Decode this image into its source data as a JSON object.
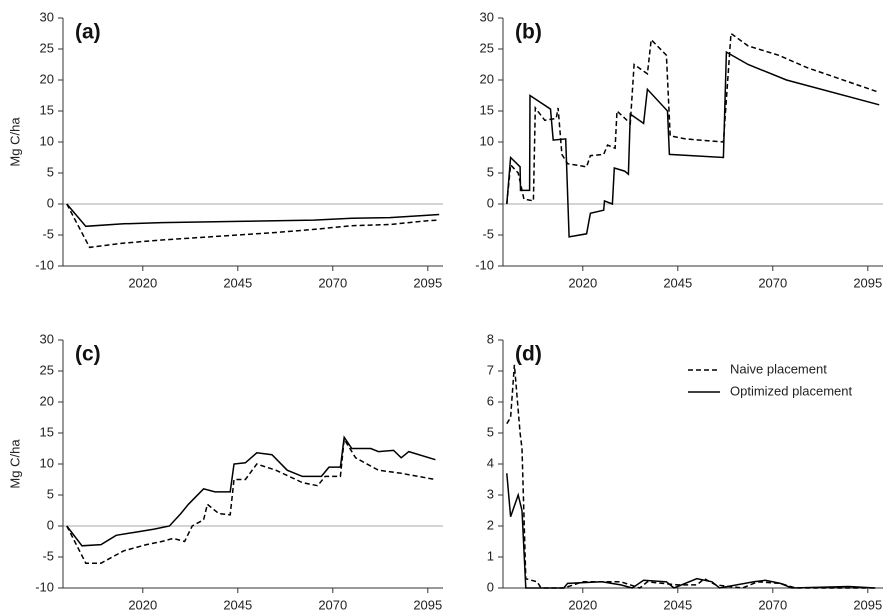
{
  "chart_data": [
    {
      "type": "line",
      "panel_label": "(a)",
      "y_label": "Mg C/ha",
      "xlim": [
        1999,
        2099
      ],
      "ylim": [
        -10,
        30
      ],
      "xticks": [
        2020,
        2045,
        2070,
        2095
      ],
      "yticks": [
        -10,
        -5,
        0,
        5,
        10,
        15,
        20,
        25,
        30
      ],
      "series": [
        {
          "dashed": true,
          "color": "#000",
          "x": [
            2000,
            2006,
            2015,
            2025,
            2035,
            2045,
            2055,
            2065,
            2075,
            2085,
            2095,
            2098
          ],
          "values": [
            0,
            -7,
            -6.3,
            -5.8,
            -5.4,
            -5,
            -4.6,
            -4.1,
            -3.5,
            -3.3,
            -2.7,
            -2.6
          ]
        },
        {
          "dashed": false,
          "color": "#000",
          "x": [
            2000,
            2005,
            2015,
            2025,
            2035,
            2045,
            2055,
            2065,
            2075,
            2085,
            2095,
            2098
          ],
          "values": [
            0,
            -3.6,
            -3.2,
            -3.0,
            -2.9,
            -2.8,
            -2.7,
            -2.6,
            -2.3,
            -2.2,
            -1.8,
            -1.7
          ]
        }
      ]
    },
    {
      "type": "line",
      "panel_label": "(b)",
      "xlim": [
        1999,
        2099
      ],
      "ylim": [
        -10,
        30
      ],
      "xticks": [
        2020,
        2045,
        2070,
        2095
      ],
      "yticks": [
        -10,
        -5,
        0,
        5,
        10,
        15,
        20,
        25,
        30
      ],
      "series": [
        {
          "dashed": true,
          "color": "#000",
          "x": [
            2000,
            2001,
            2003,
            2004.5,
            2007,
            2007.5,
            2010,
            2013,
            2013.5,
            2014.5,
            2016,
            2021,
            2022,
            2025.5,
            2026.5,
            2028.5,
            2029,
            2032.5,
            2033.5,
            2037,
            2038,
            2042,
            2043,
            2047,
            2057,
            2059,
            2063.5,
            2071.5,
            2079,
            2098
          ],
          "values": [
            0,
            6.3,
            5,
            0.8,
            0.5,
            15.5,
            13.5,
            13.8,
            15.5,
            8,
            6.5,
            6,
            7.8,
            8,
            9.5,
            9,
            15,
            13,
            22.5,
            21,
            26.5,
            24,
            11,
            10.5,
            10,
            27.5,
            25.5,
            24,
            22,
            18
          ]
        },
        {
          "dashed": false,
          "color": "#000",
          "x": [
            2000,
            2001,
            2003.5,
            2003.6,
            2006,
            2006.1,
            2011.5,
            2012.2,
            2015.5,
            2016.4,
            2021,
            2022,
            2025.5,
            2025.7,
            2027.8,
            2028.3,
            2031,
            2032,
            2032.5,
            2036,
            2037,
            2042.3,
            2042.8,
            2048.5,
            2057,
            2057.8,
            2063.5,
            2073.6,
            2098
          ],
          "values": [
            0,
            7.5,
            6,
            2.2,
            2.2,
            17.5,
            15.3,
            10.3,
            10.5,
            -5.3,
            -4.8,
            -1.5,
            -1,
            0.5,
            0,
            5.8,
            5.3,
            4.8,
            14.5,
            13,
            18.5,
            15,
            8,
            7.8,
            7.5,
            24.5,
            22.5,
            20,
            16
          ]
        }
      ]
    },
    {
      "type": "line",
      "panel_label": "(c)",
      "y_label": "Mg C/ha",
      "xlim": [
        1999,
        2099
      ],
      "ylim": [
        -10,
        30
      ],
      "xticks": [
        2020,
        2045,
        2070,
        2095
      ],
      "yticks": [
        -10,
        -5,
        0,
        5,
        10,
        15,
        20,
        25,
        30
      ],
      "series": [
        {
          "dashed": true,
          "color": "#000",
          "x": [
            2000,
            2005,
            2009,
            2015,
            2021,
            2025,
            2028,
            2031,
            2033,
            2036,
            2037,
            2040,
            2043,
            2044,
            2047,
            2050,
            2055,
            2062,
            2066,
            2068,
            2072,
            2073,
            2076,
            2082,
            2088,
            2097
          ],
          "values": [
            0,
            -6,
            -6,
            -4,
            -3,
            -2.5,
            -2,
            -2.5,
            0,
            1,
            3.5,
            2,
            1.8,
            7.5,
            7.5,
            10,
            9,
            7,
            6.5,
            8,
            8,
            14,
            11,
            9,
            8.5,
            7.5
          ]
        },
        {
          "dashed": false,
          "color": "#000",
          "x": [
            2000,
            2004,
            2009,
            2013,
            2018,
            2023,
            2027,
            2030,
            2032,
            2036,
            2039,
            2043,
            2044,
            2047,
            2050,
            2054,
            2058,
            2062,
            2067,
            2069,
            2072,
            2073,
            2075,
            2080,
            2082,
            2086,
            2088,
            2090,
            2097
          ],
          "values": [
            0,
            -3.2,
            -3,
            -1.5,
            -1,
            -0.5,
            0,
            2,
            3.5,
            6,
            5.5,
            5.5,
            10,
            10.2,
            11.8,
            11.5,
            9,
            8,
            8,
            9.5,
            9.5,
            14.3,
            12.5,
            12.5,
            12,
            12.2,
            11,
            12,
            10.7
          ]
        }
      ]
    },
    {
      "type": "line",
      "panel_label": "(d)",
      "legend": "upper right",
      "xlim": [
        1999,
        2099
      ],
      "ylim": [
        0,
        8
      ],
      "xticks": [
        2020,
        2045,
        2070,
        2095
      ],
      "yticks": [
        0,
        1,
        2,
        3,
        4,
        5,
        6,
        7,
        8
      ],
      "series": [
        {
          "name": "Naive placement",
          "dashed": true,
          "color": "#000",
          "x": [
            2000,
            2001,
            2002,
            2003.5,
            2004,
            2005,
            2008,
            2009,
            2015,
            2020,
            2030,
            2035,
            2037,
            2045,
            2050,
            2052,
            2055,
            2062,
            2066,
            2072,
            2076,
            2097
          ],
          "values": [
            5.3,
            5.5,
            7.2,
            5,
            4.5,
            0.3,
            0.2,
            0,
            0,
            0.2,
            0.2,
            0,
            0.2,
            0.1,
            0.1,
            0.3,
            0.1,
            0,
            0.2,
            0.15,
            0,
            0
          ]
        },
        {
          "name": "Optimized placement",
          "dashed": false,
          "color": "#000",
          "x": [
            2000,
            2001,
            2003,
            2004,
            2005,
            2015,
            2016,
            2025,
            2030,
            2033,
            2036,
            2042,
            2044,
            2050,
            2054,
            2056,
            2065,
            2068,
            2072,
            2075,
            2090,
            2097
          ],
          "values": [
            3.7,
            2.3,
            3,
            2.5,
            0,
            0,
            0.15,
            0.2,
            0.1,
            0,
            0.25,
            0.2,
            0,
            0.3,
            0.2,
            0,
            0.2,
            0.25,
            0.15,
            0,
            0.05,
            0
          ]
        }
      ]
    }
  ]
}
